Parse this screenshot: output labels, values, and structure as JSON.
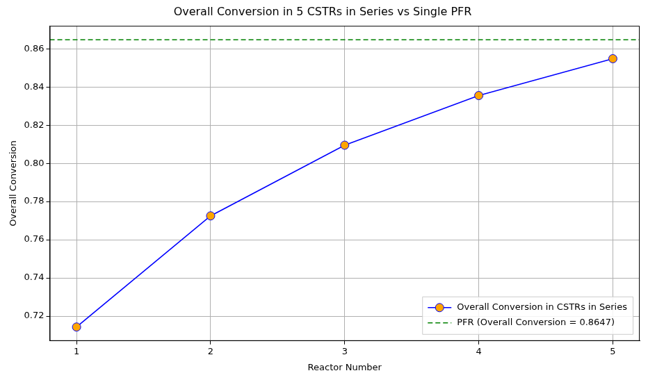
{
  "chart_data": {
    "type": "line",
    "title": "Overall Conversion in 5 CSTRs in Series vs Single PFR",
    "x_label": "Reactor Number",
    "y_label": "Overall Conversion",
    "x": [
      1,
      2,
      3,
      4,
      5
    ],
    "series": [
      {
        "name": "Overall Conversion in CSTRs in Series",
        "color": "#0000ff",
        "marker": "circle",
        "line_style": "solid",
        "values": [
          0.7143,
          0.7725,
          0.8095,
          0.8355,
          0.8548
        ]
      },
      {
        "name": "PFR (Overall Conversion = 0.8647)",
        "type": "hline",
        "color": "#008000",
        "line_style": "dashed",
        "value": 0.8647
      }
    ],
    "xlim": [
      0.8,
      5.2
    ],
    "xticks": [
      1,
      2,
      3,
      4,
      5
    ],
    "ylim": [
      0.707,
      0.872
    ],
    "yticks": [
      0.72,
      0.74,
      0.76,
      0.78,
      {
        "value": 0.8,
        "label": "0.80"
      },
      0.82,
      0.84,
      0.86
    ],
    "grid": true,
    "legend": "lower right"
  }
}
